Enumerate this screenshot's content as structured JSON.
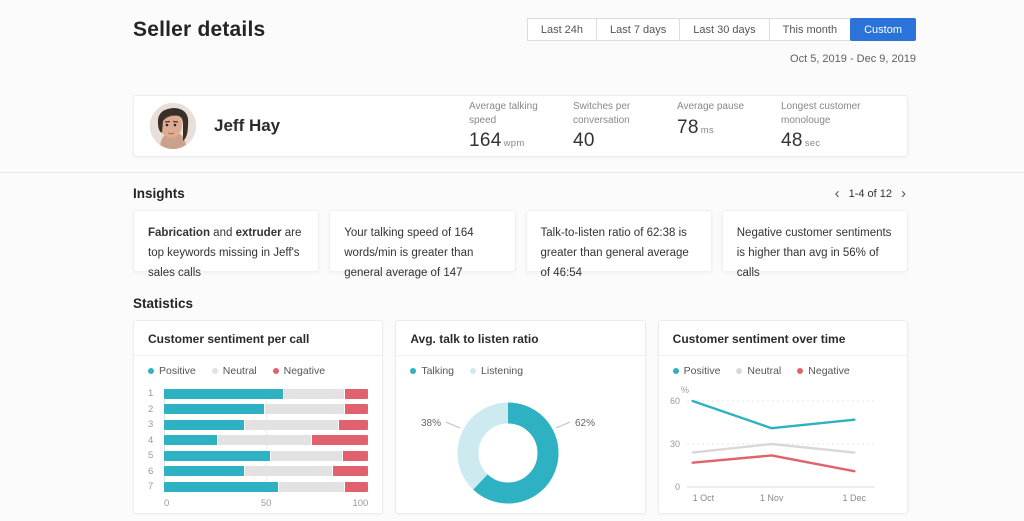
{
  "header": {
    "title": "Seller details",
    "filters": [
      {
        "label": "Last 24h",
        "active": false
      },
      {
        "label": "Last 7 days",
        "active": false
      },
      {
        "label": "Last 30 days",
        "active": false
      },
      {
        "label": "This month",
        "active": false
      },
      {
        "label": "Custom",
        "active": true
      }
    ],
    "date_range": "Oct 5, 2019 - Dec 9, 2019",
    "accent_color": "#2b72d9"
  },
  "seller": {
    "name": "Jeff Hay",
    "stats": [
      {
        "label": "Average talking speed",
        "value": "164",
        "unit": "wpm"
      },
      {
        "label": "Switches per conversation",
        "value": "40",
        "unit": ""
      },
      {
        "label": "Average pause",
        "value": "78",
        "unit": "ms"
      },
      {
        "label": "Longest customer monolouge",
        "value": "48",
        "unit": "sec"
      }
    ]
  },
  "insights": {
    "title": "Insights",
    "pagination": "1-4 of 12",
    "chevron_left": "‹",
    "chevron_right": "›",
    "cards": [
      {
        "segments": [
          {
            "text": "Fabrication",
            "bold": true
          },
          {
            "text": " and ",
            "bold": false
          },
          {
            "text": "extruder",
            "bold": true
          },
          {
            "text": " are top keywords missing in Jeff's sales calls",
            "bold": false
          }
        ]
      },
      {
        "segments": [
          {
            "text": "Your talking speed of 164 words/min is greater than general average of 147",
            "bold": false
          }
        ]
      },
      {
        "segments": [
          {
            "text": "Talk-to-listen ratio of 62:38 is greater than general average of 46:54",
            "bold": false
          }
        ]
      },
      {
        "segments": [
          {
            "text": "Negative customer sentiments is higher than avg in 56% of calls",
            "bold": false
          }
        ]
      }
    ]
  },
  "statistics": {
    "title": "Statistics"
  },
  "chart_data": [
    {
      "type": "bar",
      "orientation": "horizontal-stacked",
      "title": "Customer sentiment per call",
      "categories": [
        "1",
        "2",
        "3",
        "4",
        "5",
        "6",
        "7"
      ],
      "series": [
        {
          "name": "Positive",
          "color": "#2fb1c4",
          "values": [
            58,
            49,
            39,
            26,
            52,
            39,
            56
          ]
        },
        {
          "name": "Neutral",
          "color": "#e2e2e2",
          "values": [
            30,
            39,
            46,
            46,
            35,
            43,
            32
          ]
        },
        {
          "name": "Negative",
          "color": "#e0626c",
          "values": [
            12,
            12,
            15,
            28,
            13,
            18,
            12
          ]
        }
      ],
      "xlabel": "",
      "ylabel": "",
      "xlim": [
        0,
        100
      ],
      "xticks": [
        0,
        50,
        100
      ],
      "legend_position": "top"
    },
    {
      "type": "pie",
      "title": "Avg. talk to listen ratio",
      "labels": [
        "Talking",
        "Listening"
      ],
      "values": [
        62,
        38
      ],
      "colors": [
        "#2fb1c4",
        "#cdeaf0"
      ],
      "slice_labels": [
        "62%",
        "38%"
      ],
      "donut": true,
      "legend_position": "top"
    },
    {
      "type": "line",
      "title": "Customer sentiment over time",
      "x": [
        "1 Oct",
        "1 Nov",
        "1 Dec"
      ],
      "series": [
        {
          "name": "Positive",
          "color": "#2fb1c4",
          "values": [
            60,
            41,
            47
          ]
        },
        {
          "name": "Neutral",
          "color": "#d8d8d8",
          "values": [
            24,
            30,
            24
          ]
        },
        {
          "name": "Negative",
          "color": "#e0626c",
          "values": [
            17,
            22,
            11
          ]
        }
      ],
      "xlabel": "",
      "ylabel": "%",
      "ylim": [
        0,
        60
      ],
      "yticks": [
        0,
        30,
        60
      ],
      "grid": "dashed-horizontal",
      "legend_position": "top"
    }
  ]
}
